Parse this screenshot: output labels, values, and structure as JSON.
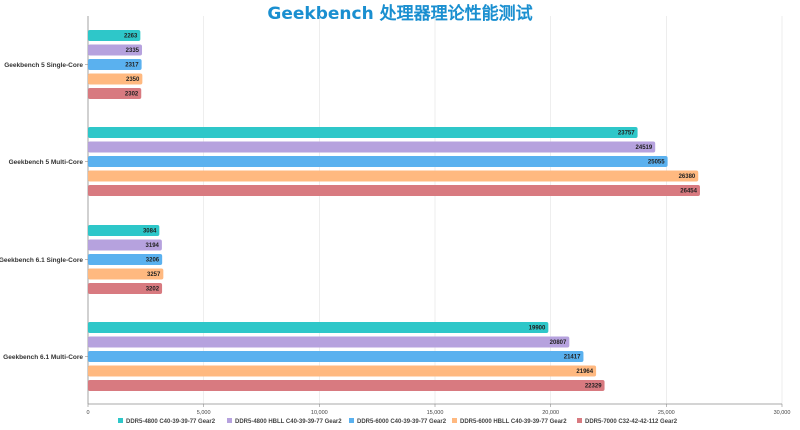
{
  "chart_data": {
    "type": "bar",
    "orientation": "horizontal",
    "title": "Geekbench 处理器理论性能测试",
    "categories": [
      "Geekbench 5 Single-Core",
      "Geekbench 5 Multi-Core",
      "Geekbench 6.1 Single-Core",
      "Geekbench 6.1 Multi-Core"
    ],
    "series": [
      {
        "name": "DDR5-4800 C40-39-39-77 Gear2",
        "color": "#2ec7c9",
        "values": [
          2263,
          23757,
          3084,
          19900
        ]
      },
      {
        "name": "DDR5-4800 HBLL C40-39-39-77 Gear2",
        "color": "#b6a2de",
        "values": [
          2335,
          24519,
          3194,
          20807
        ]
      },
      {
        "name": "DDR5-6000 C40-39-39-77 Gear2",
        "color": "#5ab1ef",
        "values": [
          2317,
          25055,
          3206,
          21417
        ]
      },
      {
        "name": "DDR5-6000 HBLL C40-39-39-77 Gear2",
        "color": "#ffb980",
        "values": [
          2350,
          26380,
          3257,
          21964
        ]
      },
      {
        "name": "DDR5-7000 C32-42-42-112 Gear2",
        "color": "#d87a80",
        "values": [
          2302,
          26454,
          3202,
          22329
        ]
      }
    ],
    "xlim": [
      0,
      30000
    ],
    "x_ticks": [
      "0",
      "5,000",
      "10,000",
      "15,000",
      "20,000",
      "25,000",
      "30,000"
    ],
    "grid": true,
    "legend_position": "bottom"
  }
}
